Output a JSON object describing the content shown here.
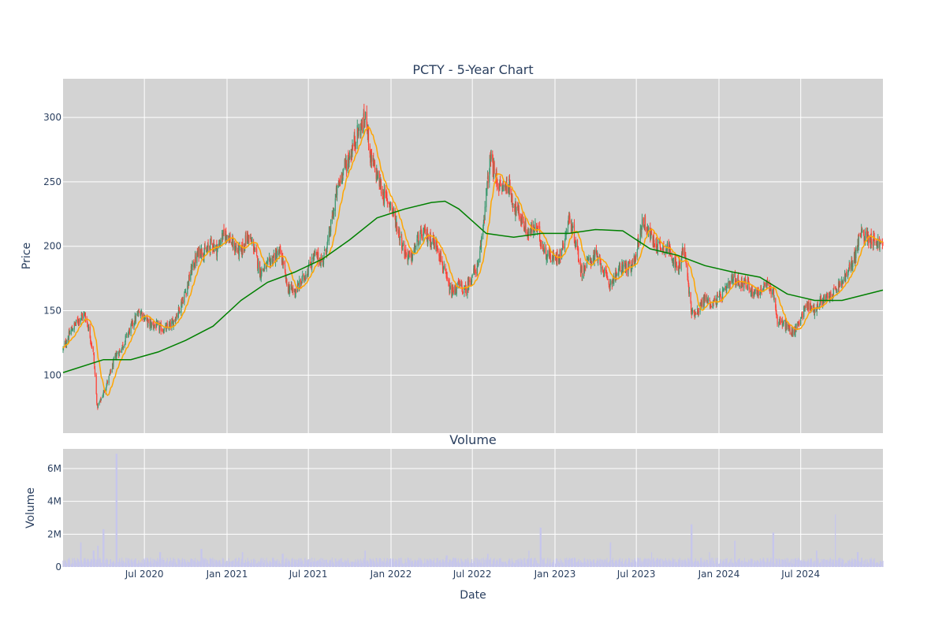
{
  "chart_data": [
    {
      "type": "candlestick",
      "title": "PCTY - 5-Year Chart",
      "ylabel": "Price",
      "ylim": [
        55,
        330
      ],
      "yticks": [
        100,
        150,
        200,
        250,
        300
      ],
      "x_range": [
        "2020-01-02",
        "2024-12-31"
      ],
      "grid": true,
      "colors": {
        "background": "#d3d3d3",
        "up": "#3d9970",
        "down": "#ff4136",
        "ma_short": "#ffa500",
        "ma_long": "#008000"
      },
      "price_path": [
        [
          "2020-01-02",
          120
        ],
        [
          "2020-01-20",
          135
        ],
        [
          "2020-02-10",
          145
        ],
        [
          "2020-02-20",
          147
        ],
        [
          "2020-03-01",
          133
        ],
        [
          "2020-03-10",
          115
        ],
        [
          "2020-03-18",
          75
        ],
        [
          "2020-03-25",
          80
        ],
        [
          "2020-04-03",
          88
        ],
        [
          "2020-04-15",
          100
        ],
        [
          "2020-04-28",
          115
        ],
        [
          "2020-05-10",
          120
        ],
        [
          "2020-05-25",
          132
        ],
        [
          "2020-06-08",
          142
        ],
        [
          "2020-06-22",
          150
        ],
        [
          "2020-07-10",
          140
        ],
        [
          "2020-07-28",
          138
        ],
        [
          "2020-08-15",
          135
        ],
        [
          "2020-09-01",
          140
        ],
        [
          "2020-09-15",
          150
        ],
        [
          "2020-10-01",
          165
        ],
        [
          "2020-10-15",
          183
        ],
        [
          "2020-11-01",
          197
        ],
        [
          "2020-11-15",
          195
        ],
        [
          "2020-11-28",
          203
        ],
        [
          "2020-12-10",
          197
        ],
        [
          "2020-12-20",
          207
        ],
        [
          "2021-01-01",
          210
        ],
        [
          "2021-01-15",
          200
        ],
        [
          "2021-02-01",
          195
        ],
        [
          "2021-02-15",
          208
        ],
        [
          "2021-03-01",
          200
        ],
        [
          "2021-03-15",
          180
        ],
        [
          "2021-04-01",
          185
        ],
        [
          "2021-04-15",
          192
        ],
        [
          "2021-05-01",
          195
        ],
        [
          "2021-05-15",
          168
        ],
        [
          "2021-06-01",
          165
        ],
        [
          "2021-06-15",
          172
        ],
        [
          "2021-07-01",
          183
        ],
        [
          "2021-07-15",
          193
        ],
        [
          "2021-08-01",
          188
        ],
        [
          "2021-08-15",
          205
        ],
        [
          "2021-09-01",
          240
        ],
        [
          "2021-09-15",
          258
        ],
        [
          "2021-10-01",
          270
        ],
        [
          "2021-10-15",
          285
        ],
        [
          "2021-10-25",
          292
        ],
        [
          "2021-11-08",
          300
        ],
        [
          "2021-11-15",
          270
        ],
        [
          "2021-12-01",
          255
        ],
        [
          "2021-12-15",
          240
        ],
        [
          "2022-01-01",
          232
        ],
        [
          "2022-01-15",
          215
        ],
        [
          "2022-02-01",
          195
        ],
        [
          "2022-02-15",
          190
        ],
        [
          "2022-03-01",
          205
        ],
        [
          "2022-03-15",
          210
        ],
        [
          "2022-04-01",
          205
        ],
        [
          "2022-04-15",
          200
        ],
        [
          "2022-05-01",
          178
        ],
        [
          "2022-05-15",
          163
        ],
        [
          "2022-06-01",
          170
        ],
        [
          "2022-06-15",
          165
        ],
        [
          "2022-07-01",
          178
        ],
        [
          "2022-07-15",
          185
        ],
        [
          "2022-08-01",
          240
        ],
        [
          "2022-08-10",
          268
        ],
        [
          "2022-08-20",
          255
        ],
        [
          "2022-09-01",
          245
        ],
        [
          "2022-09-20",
          248
        ],
        [
          "2022-10-01",
          232
        ],
        [
          "2022-10-20",
          220
        ],
        [
          "2022-11-01",
          210
        ],
        [
          "2022-11-20",
          215
        ],
        [
          "2022-12-10",
          195
        ],
        [
          "2023-01-01",
          190
        ],
        [
          "2023-01-15",
          195
        ],
        [
          "2023-02-01",
          222
        ],
        [
          "2023-02-15",
          205
        ],
        [
          "2023-03-01",
          180
        ],
        [
          "2023-03-15",
          188
        ],
        [
          "2023-04-01",
          193
        ],
        [
          "2023-04-15",
          185
        ],
        [
          "2023-05-01",
          170
        ],
        [
          "2023-05-15",
          177
        ],
        [
          "2023-06-01",
          185
        ],
        [
          "2023-06-20",
          182
        ],
        [
          "2023-07-01",
          195
        ],
        [
          "2023-07-15",
          220
        ],
        [
          "2023-07-25",
          215
        ],
        [
          "2023-08-10",
          202
        ],
        [
          "2023-08-25",
          200
        ],
        [
          "2023-09-15",
          197
        ],
        [
          "2023-10-01",
          180
        ],
        [
          "2023-10-15",
          200
        ],
        [
          "2023-11-01",
          148
        ],
        [
          "2023-11-15",
          150
        ],
        [
          "2023-12-01",
          160
        ],
        [
          "2023-12-15",
          155
        ],
        [
          "2024-01-01",
          160
        ],
        [
          "2024-01-15",
          165
        ],
        [
          "2024-02-01",
          175
        ],
        [
          "2024-02-15",
          172
        ],
        [
          "2024-03-01",
          172
        ],
        [
          "2024-03-15",
          165
        ],
        [
          "2024-04-01",
          165
        ],
        [
          "2024-04-15",
          170
        ],
        [
          "2024-05-01",
          165
        ],
        [
          "2024-05-10",
          142
        ],
        [
          "2024-05-25",
          140
        ],
        [
          "2024-06-15",
          132
        ],
        [
          "2024-07-01",
          145
        ],
        [
          "2024-07-15",
          155
        ],
        [
          "2024-08-01",
          150
        ],
        [
          "2024-08-15",
          158
        ],
        [
          "2024-09-01",
          160
        ],
        [
          "2024-09-15",
          165
        ],
        [
          "2024-10-01",
          172
        ],
        [
          "2024-10-15",
          180
        ],
        [
          "2024-11-01",
          195
        ],
        [
          "2024-11-10",
          210
        ],
        [
          "2024-11-25",
          208
        ],
        [
          "2024-12-10",
          205
        ],
        [
          "2024-12-31",
          200
        ]
      ],
      "ma_long_path": [
        [
          "2020-01-02",
          102
        ],
        [
          "2020-04-01",
          112
        ],
        [
          "2020-06-01",
          112
        ],
        [
          "2020-08-01",
          118
        ],
        [
          "2020-10-01",
          127
        ],
        [
          "2020-12-01",
          138
        ],
        [
          "2021-02-01",
          158
        ],
        [
          "2021-04-01",
          172
        ],
        [
          "2021-06-01",
          180
        ],
        [
          "2021-08-01",
          190
        ],
        [
          "2021-10-01",
          205
        ],
        [
          "2021-12-01",
          222
        ],
        [
          "2022-02-01",
          229
        ],
        [
          "2022-04-01",
          234
        ],
        [
          "2022-05-01",
          235
        ],
        [
          "2022-06-01",
          229
        ],
        [
          "2022-08-01",
          210
        ],
        [
          "2022-10-01",
          207
        ],
        [
          "2022-12-01",
          210
        ],
        [
          "2023-02-01",
          210
        ],
        [
          "2023-04-01",
          213
        ],
        [
          "2023-06-01",
          212
        ],
        [
          "2023-08-01",
          198
        ],
        [
          "2023-10-01",
          193
        ],
        [
          "2023-12-01",
          185
        ],
        [
          "2024-02-01",
          180
        ],
        [
          "2024-04-01",
          176
        ],
        [
          "2024-06-01",
          163
        ],
        [
          "2024-08-01",
          158
        ],
        [
          "2024-10-01",
          158
        ],
        [
          "2024-12-31",
          166
        ]
      ]
    },
    {
      "type": "bar",
      "title": "Volume",
      "xlabel": "Date",
      "ylabel": "Volume",
      "ylim": [
        0,
        7200000
      ],
      "yticks": [
        0,
        2000000,
        4000000,
        6000000
      ],
      "ytick_labels": [
        "0",
        "2M",
        "4M",
        "6M"
      ],
      "x_range": [
        "2020-01-02",
        "2024-12-31"
      ],
      "xticks": [
        "2020-07-01",
        "2021-01-01",
        "2021-07-01",
        "2022-01-01",
        "2022-07-01",
        "2023-01-01",
        "2023-07-01",
        "2024-01-01",
        "2024-07-01"
      ],
      "xtick_labels": [
        "Jul 2020",
        "Jan 2021",
        "Jul 2021",
        "Jan 2022",
        "Jul 2022",
        "Jan 2023",
        "Jul 2023",
        "Jan 2024",
        "Jul 2024"
      ],
      "baseline_volume": 380000,
      "spikes": [
        [
          "2020-02-10",
          1500000
        ],
        [
          "2020-03-10",
          1000000
        ],
        [
          "2020-03-20",
          1300000
        ],
        [
          "2020-04-01",
          2300000
        ],
        [
          "2020-04-30",
          6900000
        ],
        [
          "2020-08-05",
          900000
        ],
        [
          "2020-11-05",
          1100000
        ],
        [
          "2021-02-05",
          900000
        ],
        [
          "2021-05-05",
          800000
        ],
        [
          "2021-11-05",
          1000000
        ],
        [
          "2022-05-05",
          700000
        ],
        [
          "2022-08-05",
          800000
        ],
        [
          "2022-11-05",
          1000000
        ],
        [
          "2022-11-30",
          2400000
        ],
        [
          "2023-05-05",
          1500000
        ],
        [
          "2023-08-05",
          900000
        ],
        [
          "2023-11-01",
          2600000
        ],
        [
          "2023-12-10",
          900000
        ],
        [
          "2024-02-05",
          1600000
        ],
        [
          "2024-05-01",
          2100000
        ],
        [
          "2024-08-05",
          1000000
        ],
        [
          "2024-09-15",
          3200000
        ],
        [
          "2024-11-05",
          900000
        ]
      ],
      "colors": {
        "background": "#d3d3d3",
        "bar": "#c6c6ec"
      }
    }
  ]
}
